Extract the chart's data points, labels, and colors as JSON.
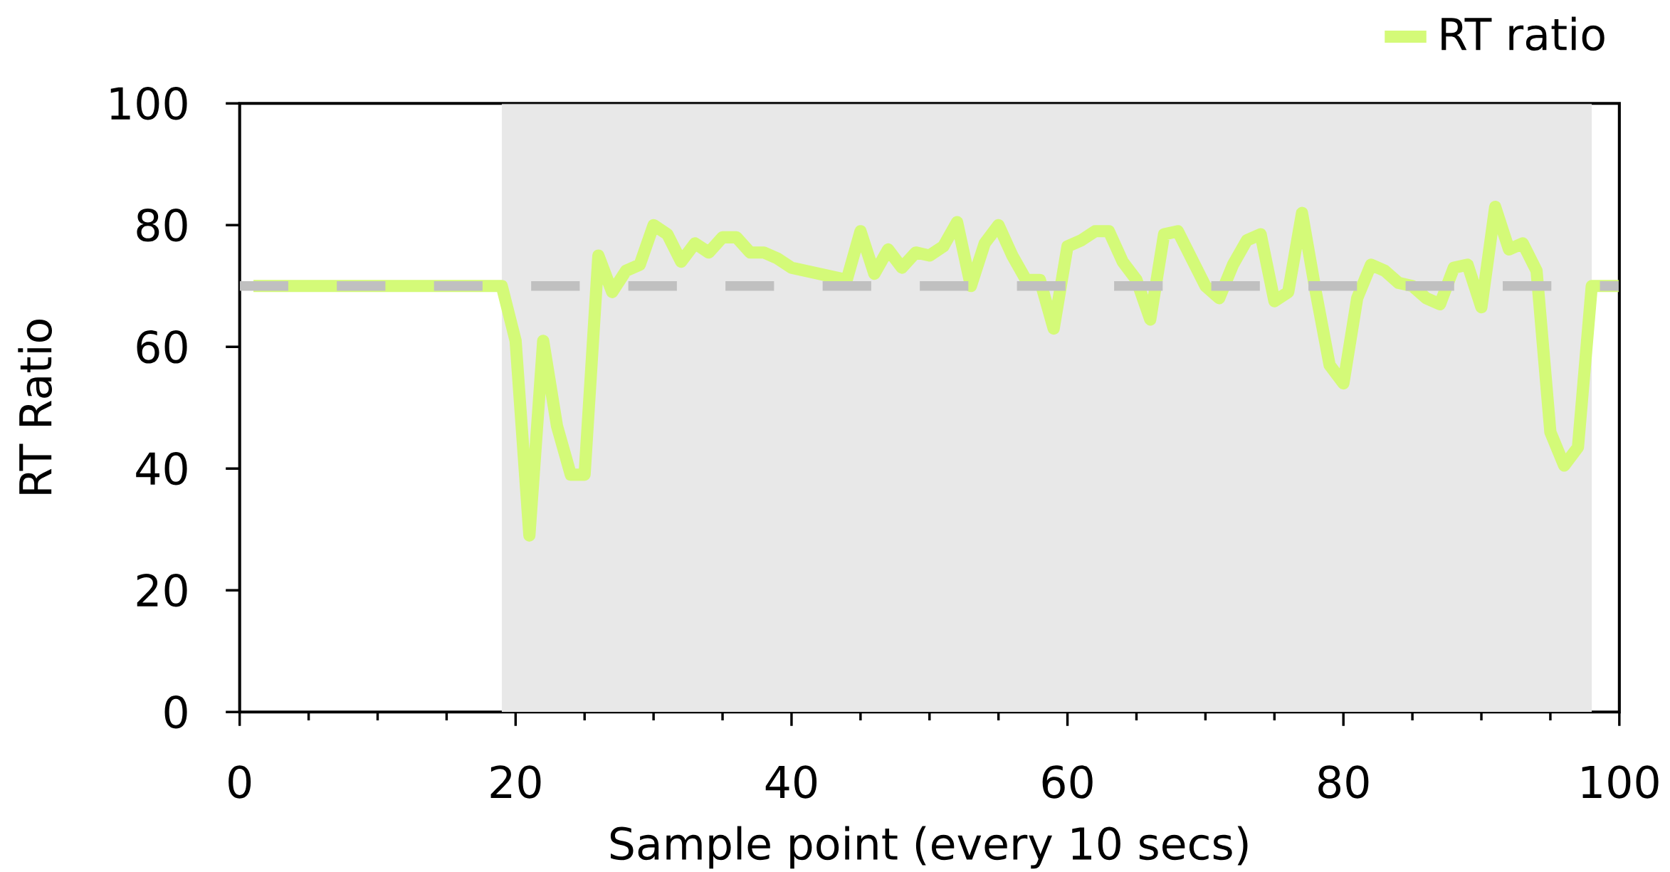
{
  "chart_data": {
    "type": "line",
    "xlabel": "Sample point (every 10 secs)",
    "ylabel": "RT Ratio",
    "x": [
      1,
      2,
      3,
      4,
      5,
      6,
      7,
      8,
      9,
      10,
      11,
      12,
      13,
      14,
      15,
      16,
      17,
      18,
      19,
      20,
      21,
      22,
      23,
      24,
      25,
      26,
      27,
      28,
      29,
      30,
      31,
      32,
      33,
      34,
      35,
      36,
      37,
      38,
      39,
      40,
      41,
      42,
      43,
      44,
      45,
      46,
      47,
      48,
      49,
      50,
      51,
      52,
      53,
      54,
      55,
      56,
      57,
      58,
      59,
      60,
      61,
      62,
      63,
      64,
      65,
      66,
      67,
      68,
      69,
      70,
      71,
      72,
      73,
      74,
      75,
      76,
      77,
      78,
      79,
      80,
      81,
      82,
      83,
      84,
      85,
      86,
      87,
      88,
      89,
      90,
      91,
      92,
      93,
      94,
      95,
      96,
      97,
      98,
      99,
      100
    ],
    "series": [
      {
        "name": "RT ratio",
        "color": "#d4fa78",
        "values": [
          70,
          70,
          70,
          70,
          70,
          70,
          70,
          70,
          70,
          70,
          70,
          70,
          70,
          70,
          70,
          70,
          70,
          70,
          70,
          61,
          29,
          61,
          47,
          39,
          39,
          75,
          69,
          72.5,
          73.5,
          80,
          78.5,
          74,
          77,
          75.5,
          78,
          78,
          75.5,
          75.5,
          74.5,
          73,
          72.5,
          72,
          71.5,
          71,
          79,
          72,
          76,
          73,
          75.5,
          75,
          76.5,
          80.5,
          70,
          77,
          80,
          75,
          71,
          71,
          63,
          76.5,
          77.5,
          79,
          79,
          74,
          71,
          64.5,
          78.5,
          79,
          74.5,
          70,
          68,
          73.5,
          77.5,
          78.5,
          67.5,
          69,
          82,
          69,
          57,
          54,
          68,
          73.5,
          72.5,
          70.5,
          70,
          68,
          67,
          73,
          73.5,
          66.5,
          83,
          76,
          77,
          72.5,
          46,
          40.5,
          43.5,
          70,
          70,
          70
        ]
      }
    ],
    "xlim": [
      0,
      100
    ],
    "ylim": [
      0,
      100
    ],
    "xticks": [
      0,
      20,
      40,
      60,
      80,
      100
    ],
    "yticks": [
      0,
      20,
      40,
      60,
      80,
      100
    ],
    "ref_lines": [
      {
        "axis": "y",
        "value": 70,
        "color": "#c0c0c0",
        "line_style": "dashed"
      }
    ],
    "bands": [
      {
        "axis": "x",
        "from": 19,
        "to": 98,
        "color": "#e8e8e8"
      }
    ],
    "grid": false,
    "legend": "top right",
    "marker": "none",
    "line_style": "solid"
  }
}
